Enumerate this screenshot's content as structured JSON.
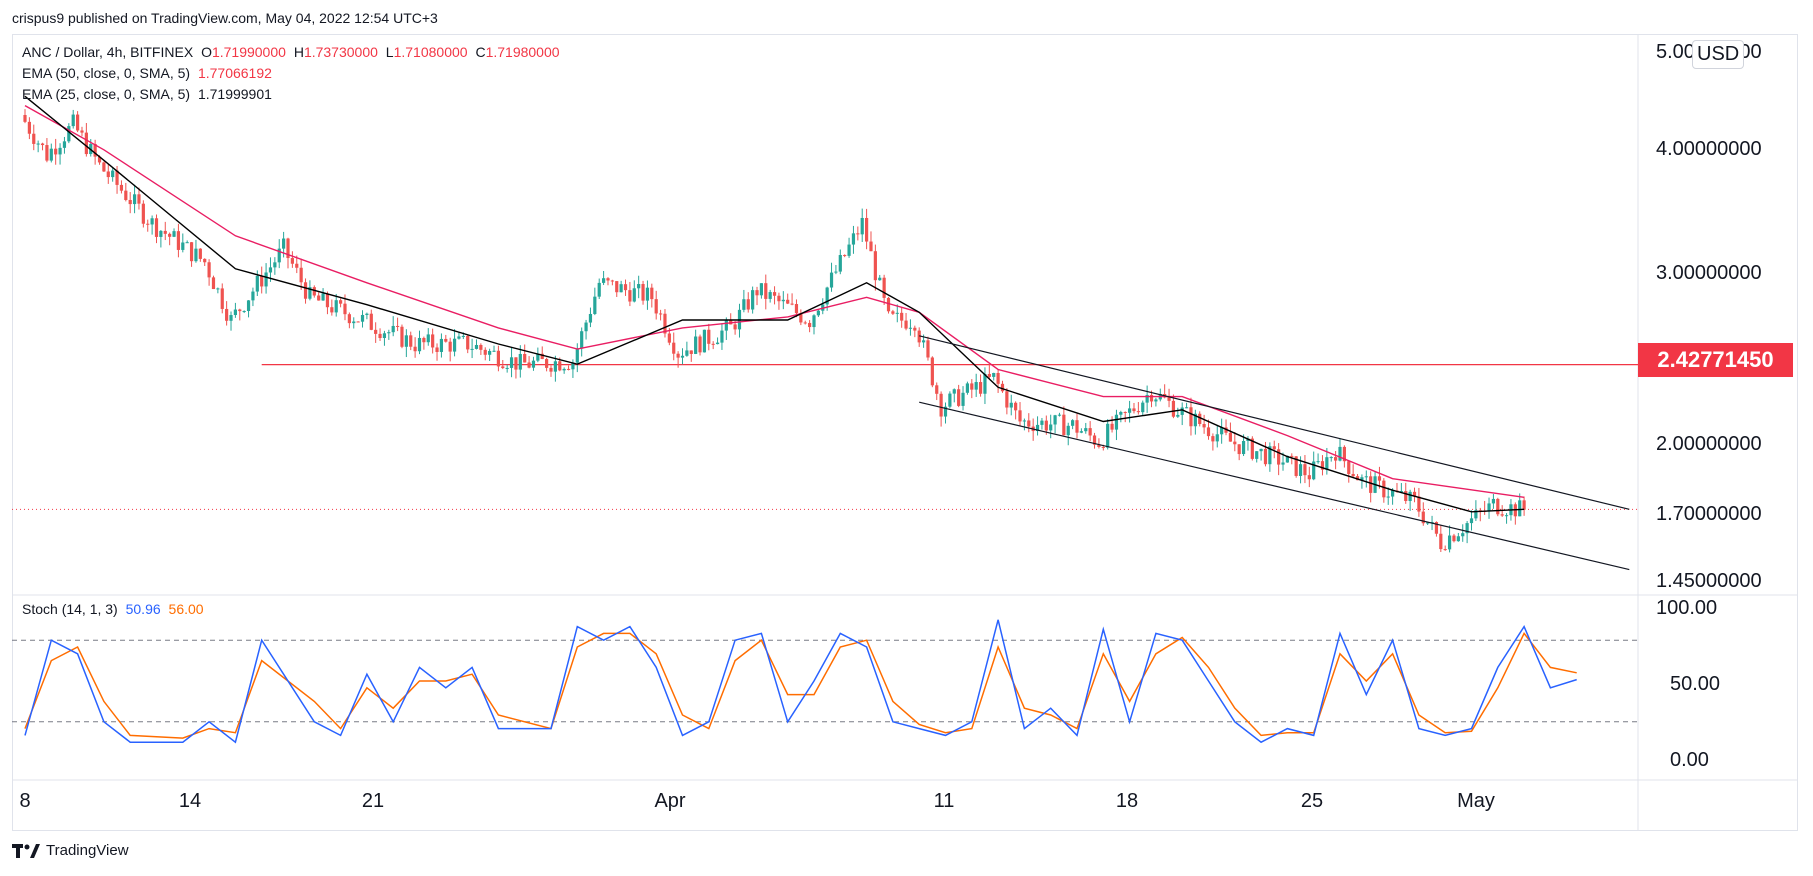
{
  "header": {
    "publisher_text": "crispus9 published on TradingView.com, May 04, 2022 12:54 UTC+3"
  },
  "legend": {
    "symbol": "ANC / Dollar, 4h, BITFINEX",
    "ohlc": {
      "o_label": "O",
      "o": "1.71990000",
      "h_label": "H",
      "h": "1.73730000",
      "l_label": "L",
      "l": "1.71080000",
      "c_label": "C",
      "c": "1.71980000"
    },
    "ema50_label": "EMA (50, close, 0, SMA, 5)",
    "ema50_value": "1.77066192",
    "ema25_label": "EMA (25, close, 0, SMA, 5)",
    "ema25_value": "1.71999901",
    "stoch_label": "Stoch (14, 1, 3)",
    "stoch_k": "50.96",
    "stoch_d": "56.00"
  },
  "price_axis": {
    "currency": "USD",
    "ticks": [
      "5.00000000",
      "4.00000000",
      "3.00000000",
      "2.00000000",
      "1.70000000",
      "1.45000000"
    ],
    "highlight_label": "2.42771450"
  },
  "stoch_axis": {
    "ticks": [
      "100.00",
      "50.00",
      "0.00"
    ]
  },
  "time_axis": {
    "labels": [
      "8",
      "14",
      "21",
      "Apr",
      "11",
      "18",
      "25",
      "May"
    ]
  },
  "footer": {
    "brand": "TradingView"
  },
  "colors": {
    "up": "#26a69a",
    "down": "#ef5350",
    "ema50": "#e91e63",
    "ema25": "#000000",
    "stoch_k": "#2962ff",
    "stoch_d": "#ff6d00",
    "support": "#f23645",
    "accent": "#f23645"
  },
  "chart_data": [
    {
      "type": "candlestick",
      "title": "ANC / Dollar, 4h, BITFINEX",
      "scale": "log",
      "ylim": [
        1.45,
        5.0
      ],
      "x_range": [
        "2022-03-08",
        "2022-05-08"
      ],
      "anchors": [
        [
          "2022-03-08",
          4.4
        ],
        [
          "2022-03-09",
          4.0
        ],
        [
          "2022-03-10",
          4.3
        ],
        [
          "2022-03-11",
          3.9
        ],
        [
          "2022-03-13",
          3.4
        ],
        [
          "2022-03-15",
          3.1
        ],
        [
          "2022-03-16",
          2.7
        ],
        [
          "2022-03-18",
          3.2
        ],
        [
          "2022-03-19",
          2.85
        ],
        [
          "2022-03-21",
          2.7
        ],
        [
          "2022-03-23",
          2.55
        ],
        [
          "2022-03-25",
          2.55
        ],
        [
          "2022-03-27",
          2.43
        ],
        [
          "2022-03-29",
          2.45
        ],
        [
          "2022-03-30",
          2.95
        ],
        [
          "2022-04-01",
          2.85
        ],
        [
          "2022-04-02",
          2.5
        ],
        [
          "2022-04-04",
          2.65
        ],
        [
          "2022-04-05",
          2.9
        ],
        [
          "2022-04-07",
          2.7
        ],
        [
          "2022-04-09",
          3.4
        ],
        [
          "2022-04-10",
          2.7
        ],
        [
          "2022-04-11",
          2.7
        ],
        [
          "2022-04-12",
          2.2
        ],
        [
          "2022-04-14",
          2.35
        ],
        [
          "2022-04-15",
          2.12
        ],
        [
          "2022-04-17",
          2.1
        ],
        [
          "2022-04-18",
          2.02
        ],
        [
          "2022-04-20",
          2.28
        ],
        [
          "2022-04-21",
          2.18
        ],
        [
          "2022-04-23",
          2.02
        ],
        [
          "2022-04-25",
          1.93
        ],
        [
          "2022-04-26",
          1.87
        ],
        [
          "2022-04-27",
          1.98
        ],
        [
          "2022-04-28",
          1.84
        ],
        [
          "2022-04-30",
          1.75
        ],
        [
          "2022-05-01",
          1.59
        ],
        [
          "2022-05-03",
          1.74
        ],
        [
          "2022-05-04",
          1.72
        ]
      ],
      "current_price": 1.7198,
      "horizontal_level": 2.4277145,
      "ema50": [
        [
          "2022-03-08",
          4.5
        ],
        [
          "2022-03-11",
          4.05
        ],
        [
          "2022-03-16",
          3.3
        ],
        [
          "2022-03-21",
          2.95
        ],
        [
          "2022-03-26",
          2.65
        ],
        [
          "2022-03-29",
          2.52
        ],
        [
          "2022-04-02",
          2.65
        ],
        [
          "2022-04-06",
          2.72
        ],
        [
          "2022-04-09",
          2.85
        ],
        [
          "2022-04-11",
          2.75
        ],
        [
          "2022-04-14",
          2.4
        ],
        [
          "2022-04-18",
          2.25
        ],
        [
          "2022-04-21",
          2.25
        ],
        [
          "2022-04-25",
          2.05
        ],
        [
          "2022-04-29",
          1.85
        ],
        [
          "2022-05-04",
          1.77
        ]
      ],
      "ema25": [
        [
          "2022-03-08",
          4.6
        ],
        [
          "2022-03-11",
          3.95
        ],
        [
          "2022-03-16",
          3.05
        ],
        [
          "2022-03-21",
          2.8
        ],
        [
          "2022-03-26",
          2.55
        ],
        [
          "2022-03-29",
          2.43
        ],
        [
          "2022-04-02",
          2.7
        ],
        [
          "2022-04-06",
          2.7
        ],
        [
          "2022-04-09",
          2.95
        ],
        [
          "2022-04-11",
          2.75
        ],
        [
          "2022-04-14",
          2.3
        ],
        [
          "2022-04-18",
          2.12
        ],
        [
          "2022-04-21",
          2.18
        ],
        [
          "2022-04-25",
          1.95
        ],
        [
          "2022-04-29",
          1.8
        ],
        [
          "2022-05-02",
          1.71
        ],
        [
          "2022-05-04",
          1.72
        ]
      ],
      "trendlines": [
        {
          "from": [
            "2022-04-11",
            2.6
          ],
          "to": [
            "2022-05-08",
            1.72
          ]
        },
        {
          "from": [
            "2022-04-11",
            2.22
          ],
          "to": [
            "2022-05-08",
            1.49
          ]
        }
      ]
    },
    {
      "type": "line",
      "title": "Stoch (14, 1, 3)",
      "ylim": [
        0,
        100
      ],
      "levels": [
        80,
        20
      ],
      "series": [
        {
          "name": "%K",
          "points": [
            [
              "2022-03-08",
              10
            ],
            [
              "2022-03-09",
              80
            ],
            [
              "2022-03-10",
              70
            ],
            [
              "2022-03-11",
              20
            ],
            [
              "2022-03-12",
              5
            ],
            [
              "2022-03-14",
              5
            ],
            [
              "2022-03-15",
              20
            ],
            [
              "2022-03-16",
              5
            ],
            [
              "2022-03-17",
              80
            ],
            [
              "2022-03-19",
              20
            ],
            [
              "2022-03-20",
              10
            ],
            [
              "2022-03-21",
              55
            ],
            [
              "2022-03-22",
              20
            ],
            [
              "2022-03-23",
              60
            ],
            [
              "2022-03-24",
              45
            ],
            [
              "2022-03-25",
              60
            ],
            [
              "2022-03-26",
              15
            ],
            [
              "2022-03-28",
              15
            ],
            [
              "2022-03-29",
              90
            ],
            [
              "2022-03-30",
              80
            ],
            [
              "2022-03-31",
              90
            ],
            [
              "2022-04-01",
              60
            ],
            [
              "2022-04-02",
              10
            ],
            [
              "2022-04-03",
              20
            ],
            [
              "2022-04-04",
              80
            ],
            [
              "2022-04-05",
              85
            ],
            [
              "2022-04-06",
              20
            ],
            [
              "2022-04-07",
              50
            ],
            [
              "2022-04-08",
              85
            ],
            [
              "2022-04-09",
              75
            ],
            [
              "2022-04-10",
              20
            ],
            [
              "2022-04-11",
              15
            ],
            [
              "2022-04-12",
              10
            ],
            [
              "2022-04-13",
              20
            ],
            [
              "2022-04-14",
              95
            ],
            [
              "2022-04-15",
              15
            ],
            [
              "2022-04-16",
              30
            ],
            [
              "2022-04-17",
              10
            ],
            [
              "2022-04-18",
              88
            ],
            [
              "2022-04-19",
              20
            ],
            [
              "2022-04-20",
              85
            ],
            [
              "2022-04-21",
              80
            ],
            [
              "2022-04-22",
              50
            ],
            [
              "2022-04-23",
              20
            ],
            [
              "2022-04-24",
              5
            ],
            [
              "2022-04-25",
              15
            ],
            [
              "2022-04-26",
              10
            ],
            [
              "2022-04-27",
              85
            ],
            [
              "2022-04-28",
              40
            ],
            [
              "2022-04-29",
              80
            ],
            [
              "2022-04-30",
              15
            ],
            [
              "2022-05-01",
              10
            ],
            [
              "2022-05-02",
              15
            ],
            [
              "2022-05-03",
              60
            ],
            [
              "2022-05-04",
              90
            ],
            [
              "2022-05-05",
              45
            ],
            [
              "2022-05-06",
              51
            ]
          ]
        },
        {
          "name": "%D",
          "points": [
            [
              "2022-03-08",
              15
            ],
            [
              "2022-03-09",
              65
            ],
            [
              "2022-03-10",
              75
            ],
            [
              "2022-03-11",
              35
            ],
            [
              "2022-03-12",
              10
            ],
            [
              "2022-03-14",
              8
            ],
            [
              "2022-03-15",
              15
            ],
            [
              "2022-03-16",
              12
            ],
            [
              "2022-03-17",
              65
            ],
            [
              "2022-03-19",
              35
            ],
            [
              "2022-03-20",
              15
            ],
            [
              "2022-03-21",
              45
            ],
            [
              "2022-03-22",
              30
            ],
            [
              "2022-03-23",
              50
            ],
            [
              "2022-03-24",
              50
            ],
            [
              "2022-03-25",
              55
            ],
            [
              "2022-03-26",
              25
            ],
            [
              "2022-03-28",
              15
            ],
            [
              "2022-03-29",
              75
            ],
            [
              "2022-03-30",
              85
            ],
            [
              "2022-03-31",
              85
            ],
            [
              "2022-04-01",
              70
            ],
            [
              "2022-04-02",
              25
            ],
            [
              "2022-04-03",
              15
            ],
            [
              "2022-04-04",
              65
            ],
            [
              "2022-04-05",
              80
            ],
            [
              "2022-04-06",
              40
            ],
            [
              "2022-04-07",
              40
            ],
            [
              "2022-04-08",
              75
            ],
            [
              "2022-04-09",
              80
            ],
            [
              "2022-04-10",
              35
            ],
            [
              "2022-04-11",
              18
            ],
            [
              "2022-04-12",
              12
            ],
            [
              "2022-04-13",
              15
            ],
            [
              "2022-04-14",
              75
            ],
            [
              "2022-04-15",
              30
            ],
            [
              "2022-04-16",
              25
            ],
            [
              "2022-04-17",
              15
            ],
            [
              "2022-04-18",
              70
            ],
            [
              "2022-04-19",
              35
            ],
            [
              "2022-04-20",
              70
            ],
            [
              "2022-04-21",
              82
            ],
            [
              "2022-04-22",
              60
            ],
            [
              "2022-04-23",
              30
            ],
            [
              "2022-04-24",
              10
            ],
            [
              "2022-04-25",
              12
            ],
            [
              "2022-04-26",
              12
            ],
            [
              "2022-04-27",
              70
            ],
            [
              "2022-04-28",
              50
            ],
            [
              "2022-04-29",
              70
            ],
            [
              "2022-04-30",
              25
            ],
            [
              "2022-05-01",
              12
            ],
            [
              "2022-05-02",
              13
            ],
            [
              "2022-05-03",
              45
            ],
            [
              "2022-05-04",
              85
            ],
            [
              "2022-05-05",
              60
            ],
            [
              "2022-05-06",
              56
            ]
          ]
        }
      ]
    }
  ]
}
